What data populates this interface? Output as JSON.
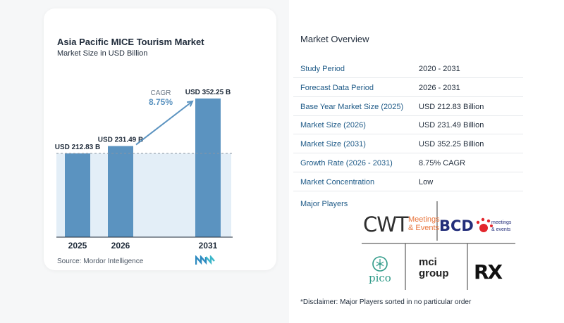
{
  "chart_data": {
    "type": "bar",
    "title": "Asia Pacific MICE Tourism Market",
    "subtitle": "Market Size in USD Billion",
    "categories": [
      "2025",
      "2026",
      "2031"
    ],
    "values": [
      212.83,
      231.49,
      352.25
    ],
    "value_labels": [
      "USD 212.83 B",
      "USD 231.49 B",
      "USD 352.25 B"
    ],
    "cagr_label": "CAGR",
    "cagr_value": "8.75%",
    "colors": {
      "bar": "#5b93c0",
      "bar_light": "#e3eef7",
      "arrow": "#5b93c0",
      "axis": "#1f2b3a"
    }
  },
  "source": "Source:  Mordor Intelligence",
  "overview": {
    "title": "Market Overview",
    "rows": [
      {
        "label": "Study Period",
        "value": "2020 - 2031"
      },
      {
        "label": "Forecast Data Period",
        "value": "2026 - 2031"
      },
      {
        "label": "Base Year Market Size (2025)",
        "value": "USD 212.83 Billion"
      },
      {
        "label": "Market Size (2026)",
        "value": "USD 231.49 Billion"
      },
      {
        "label": "Market Size (2031)",
        "value": "USD 352.25 Billion"
      },
      {
        "label": "Growth Rate (2026 - 2031)",
        "value": "8.75% CAGR"
      },
      {
        "label": "Market Concentration",
        "value": "Low"
      }
    ]
  },
  "players": {
    "title": "Major Players",
    "logos": {
      "cwt": {
        "mark": "CWT",
        "line1": "Meetings",
        "line2": "& Events"
      },
      "bcd": {
        "mark": "BCD",
        "line1": "meetings",
        "line2": "& events"
      },
      "pico": {
        "name": "pico"
      },
      "mci": {
        "line1": "mci",
        "line2": "group"
      },
      "rx": {
        "name": "RX"
      }
    }
  },
  "disclaimer": "*Disclaimer: Major Players sorted in no particular order"
}
